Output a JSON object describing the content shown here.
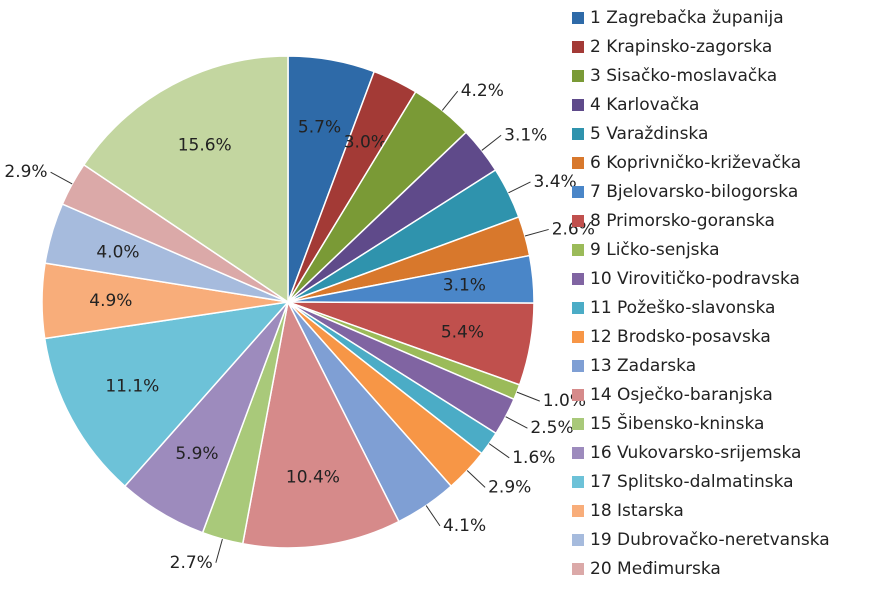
{
  "chart_data": {
    "type": "pie",
    "categories": [
      "1 Zagrebačka županija",
      "2 Krapinsko-zagorska",
      "3 Sisačko-moslavačka",
      "4 Karlovačka",
      "5 Varaždinska",
      "6 Koprivničko-križevačka",
      "7 Bjelovarsko-bilogorska",
      "8 Primorsko-goranska",
      "9 Ličko-senjska",
      "10 Virovitičko-podravska",
      "11 Požeško-slavonska",
      "12 Brodsko-posavska",
      "13 Zadarska",
      "14 Osječko-baranjska",
      "15 Šibensko-kninska",
      "16 Vukovarsko-srijemska",
      "17 Splitsko-dalmatinska",
      "18 Istarska",
      "19 Dubrovačko-neretvanska",
      "20 Međimurska",
      null
    ],
    "values": [
      5.7,
      3.0,
      4.2,
      3.1,
      3.4,
      2.6,
      3.1,
      5.4,
      1.0,
      2.5,
      1.6,
      2.9,
      4.1,
      10.4,
      2.7,
      5.9,
      11.1,
      4.9,
      4.0,
      2.9,
      15.6
    ],
    "value_labels": [
      "5.7%",
      "3.0%",
      "4.2%",
      "3.1%",
      "3.4%",
      "2.6%",
      "3.1%",
      "5.4%",
      "1.0%",
      "2.5%",
      "1.6%",
      "2.9%",
      "4.1%",
      "10.4%",
      "2.7%",
      "5.9%",
      "11.1%",
      "4.9%",
      "4.0%",
      "2.9%",
      "15.6%"
    ],
    "colors": [
      "#2e6aa8",
      "#a33a36",
      "#7a9a36",
      "#5f4a8a",
      "#2f93ad",
      "#d8782c",
      "#4a86c8",
      "#c0504d",
      "#9bbb59",
      "#8064a2",
      "#4bacc6",
      "#f79646",
      "#7f9fd4",
      "#d68a8a",
      "#a9c97a",
      "#9d8bbd",
      "#6dc2d8",
      "#f8ad7a",
      "#a6bbdd",
      "#dba9a8",
      "#c3d6a0"
    ]
  }
}
